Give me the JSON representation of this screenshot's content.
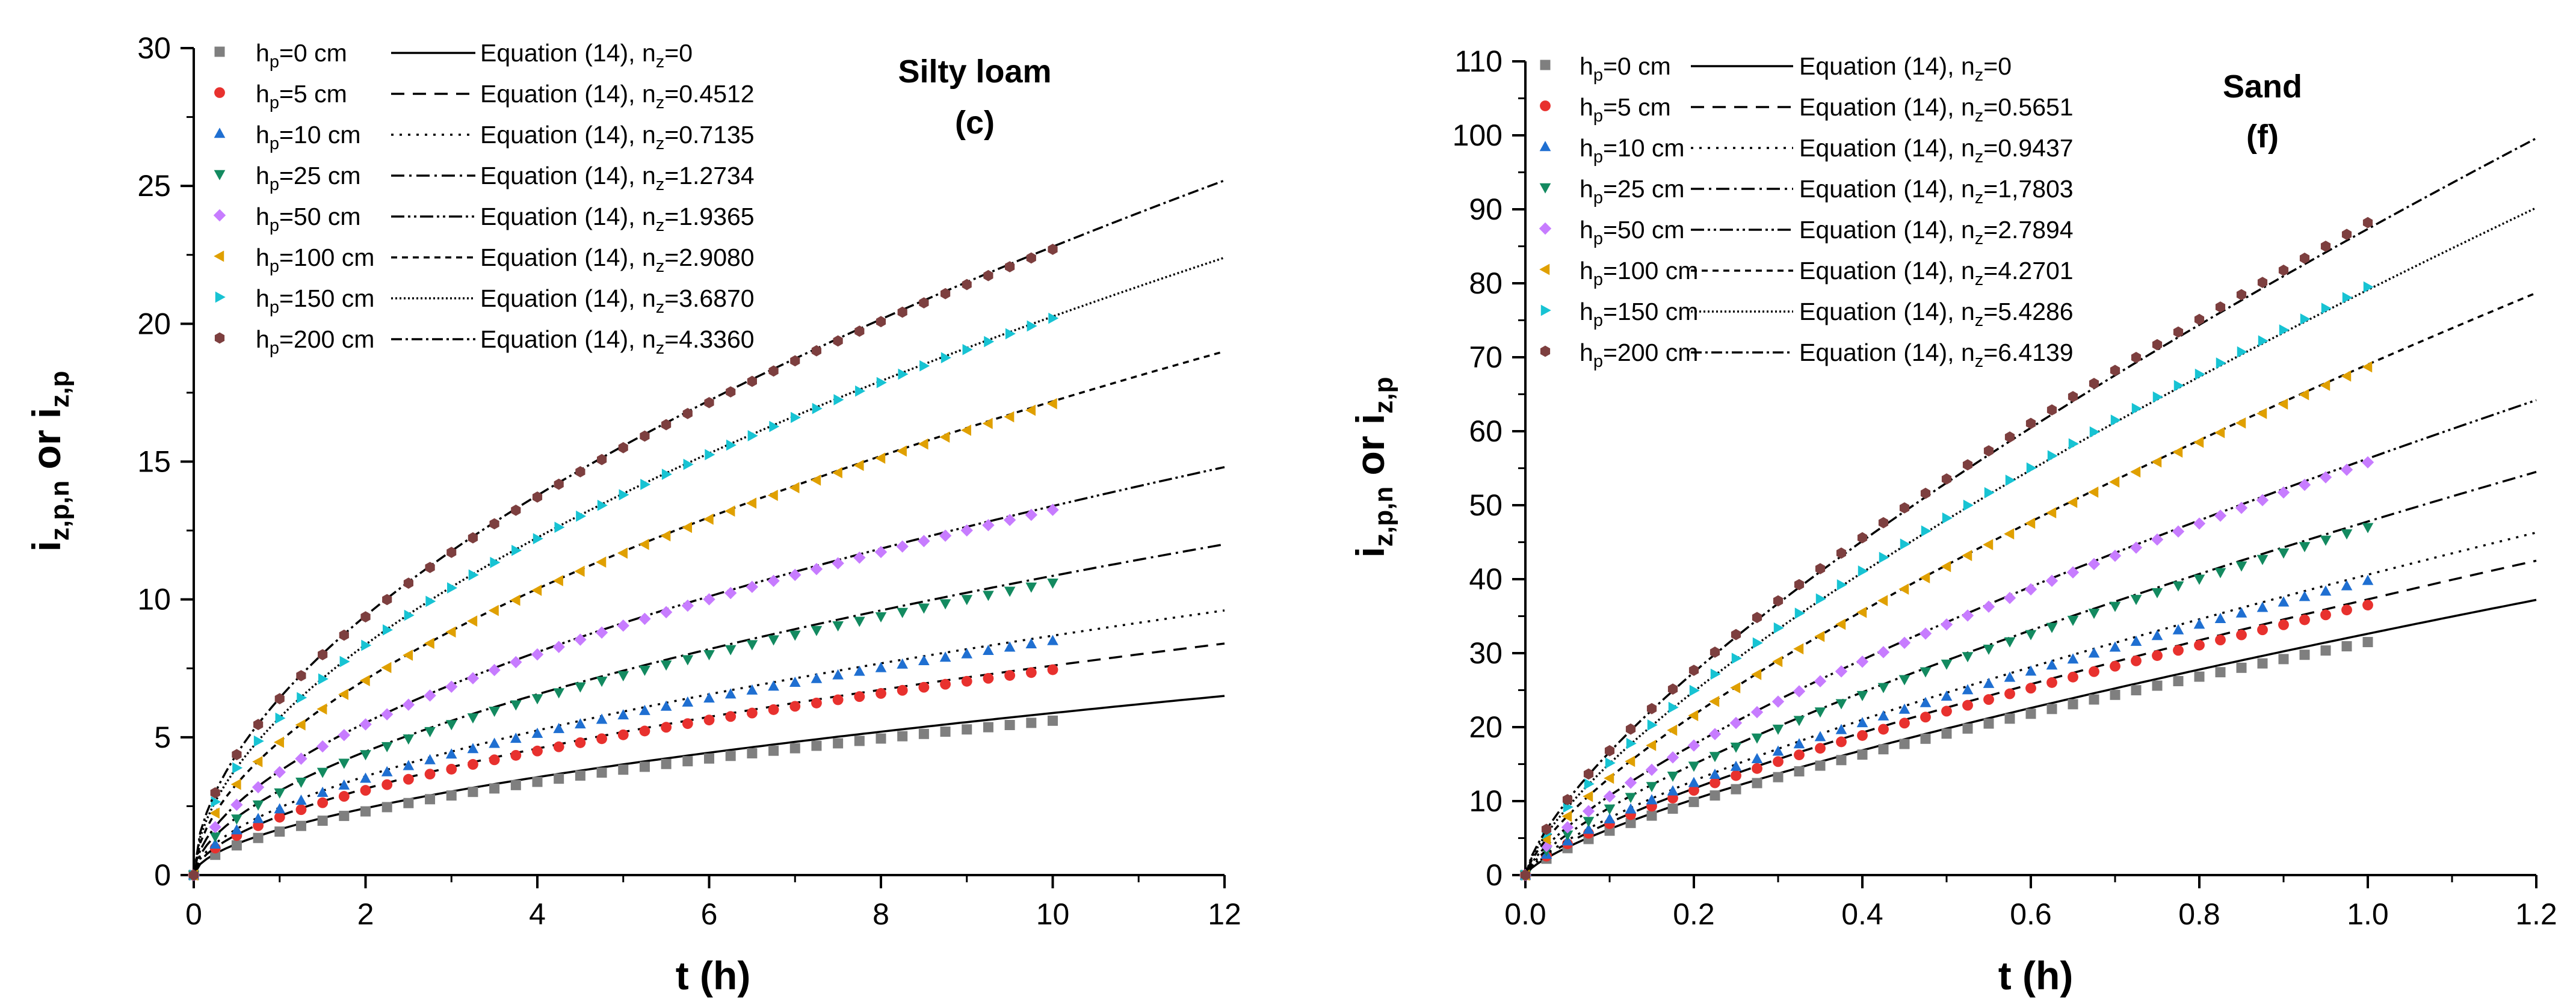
{
  "chart_data": [
    {
      "type": "scatter",
      "title": "Silty loam",
      "panel_label": "(c)",
      "xlabel": "t (h)",
      "ylabel": {
        "main1": "i",
        "sub1": "z,p,n",
        "mid": "  or  ",
        "main2": "i",
        "sub2": "z,p"
      },
      "xlim": [
        0,
        12
      ],
      "ylim": [
        0,
        30
      ],
      "xticks": [
        0,
        2,
        4,
        6,
        8,
        10,
        12
      ],
      "yticks": [
        0,
        5,
        10,
        15,
        20,
        25,
        30
      ],
      "xtick_labels": [
        "0",
        "2",
        "4",
        "6",
        "8",
        "10",
        "12"
      ],
      "ytick_labels": [
        "0",
        "5",
        "10",
        "15",
        "20",
        "25",
        "30"
      ],
      "x_obs_max": 10,
      "n_points": 41,
      "legend_position": "top-left",
      "series": [
        {
          "name_main": "h",
          "name_sub": "p",
          "name_rest": "=0 cm",
          "eq_main": "Equation (14), n",
          "eq_sub": "z",
          "eq_rest": "=0",
          "n_z": 0,
          "marker": "square",
          "color": "#7f7f7f",
          "dash": "",
          "end_value": 6.5,
          "obs_end": 5.6
        },
        {
          "name_main": "h",
          "name_sub": "p",
          "name_rest": "=5 cm",
          "eq_main": "Equation (14), n",
          "eq_sub": "z",
          "eq_rest": "=0.4512",
          "n_z": 0.4512,
          "marker": "circle",
          "color": "#e8312e",
          "dash": "22,14",
          "end_value": 8.4,
          "obs_end": 7.45
        },
        {
          "name_main": "h",
          "name_sub": "p",
          "name_rest": "=10 cm",
          "eq_main": "Equation (14), n",
          "eq_sub": "z",
          "eq_rest": "=0.7135",
          "n_z": 0.7135,
          "marker": "triangle-up",
          "color": "#1f6fd1",
          "dash": "4,10",
          "end_value": 9.6,
          "obs_end": 8.5
        },
        {
          "name_main": "h",
          "name_sub": "p",
          "name_rest": "=25 cm",
          "eq_main": "Equation (14), n",
          "eq_sub": "z",
          "eq_rest": "=1.2734",
          "n_z": 1.2734,
          "marker": "triangle-down",
          "color": "#138a60",
          "dash": "22,8,4,8",
          "end_value": 12.0,
          "obs_end": 10.6
        },
        {
          "name_main": "h",
          "name_sub": "p",
          "name_rest": "=50 cm",
          "eq_main": "Equation (14), n",
          "eq_sub": "z",
          "eq_rest": "=1.9365",
          "n_z": 1.9365,
          "marker": "diamond",
          "color": "#c77cff",
          "dash": "22,6,4,6,4,6",
          "end_value": 14.8,
          "obs_end": 13.25
        },
        {
          "name_main": "h",
          "name_sub": "p",
          "name_rest": "=100 cm",
          "eq_main": "Equation (14), n",
          "eq_sub": "z",
          "eq_rest": "=2.9080",
          "n_z": 2.908,
          "marker": "triangle-left",
          "color": "#e0a000",
          "dash": "10,8",
          "end_value": 19.0,
          "obs_end": 17.1
        },
        {
          "name_main": "h",
          "name_sub": "p",
          "name_rest": "=150 cm",
          "eq_main": "Equation (14), n",
          "eq_sub": "z",
          "eq_rest": "=3.6870",
          "n_z": 3.687,
          "marker": "triangle-right",
          "color": "#17c3d3",
          "dash": "3,4",
          "end_value": 22.4,
          "obs_end": 20.2
        },
        {
          "name_main": "h",
          "name_sub": "p",
          "name_rest": "=200 cm",
          "eq_main": "Equation (14), n",
          "eq_sub": "z",
          "eq_rest": "=4.3360",
          "n_z": 4.336,
          "marker": "hexagon",
          "color": "#7d3f3f",
          "dash": "18,6,4,6",
          "end_value": 25.2,
          "obs_end": 22.7
        }
      ]
    },
    {
      "type": "scatter",
      "title": "Sand",
      "panel_label": "(f)",
      "xlabel": "t (h)",
      "ylabel": {
        "main1": "i",
        "sub1": "z,p,n",
        "mid": "  or  ",
        "main2": "i",
        "sub2": "z,p"
      },
      "xlim": [
        0,
        1.2
      ],
      "ylim": [
        0,
        110
      ],
      "xticks": [
        0,
        0.2,
        0.4,
        0.6,
        0.8,
        1.0,
        1.2
      ],
      "yticks": [
        0,
        10,
        20,
        30,
        40,
        50,
        60,
        70,
        80,
        90,
        100,
        110
      ],
      "xtick_labels": [
        "0.0",
        "0.2",
        "0.4",
        "0.6",
        "0.8",
        "1.0",
        "1.2"
      ],
      "ytick_labels": [
        "0",
        "10",
        "20",
        "30",
        "40",
        "50",
        "60",
        "70",
        "80",
        "90",
        "100",
        "110"
      ],
      "x_obs_max": 1.0,
      "n_points": 41,
      "legend_position": "top-left",
      "series": [
        {
          "name_main": "h",
          "name_sub": "p",
          "name_rest": "=0 cm",
          "eq_main": "Equation (14), n",
          "eq_sub": "z",
          "eq_rest": "=0",
          "n_z": 0,
          "marker": "square",
          "color": "#7f7f7f",
          "dash": "",
          "end_value": 37.2,
          "obs_end": 31.5
        },
        {
          "name_main": "h",
          "name_sub": "p",
          "name_rest": "=5 cm",
          "eq_main": "Equation (14), n",
          "eq_sub": "z",
          "eq_rest": "=0.5651",
          "n_z": 0.5651,
          "marker": "circle",
          "color": "#e8312e",
          "dash": "22,14",
          "end_value": 42.5,
          "obs_end": 36.5
        },
        {
          "name_main": "h",
          "name_sub": "p",
          "name_rest": "=10 cm",
          "eq_main": "Equation (14), n",
          "eq_sub": "z",
          "eq_rest": "=0.9437",
          "n_z": 0.9437,
          "marker": "triangle-up",
          "color": "#1f6fd1",
          "dash": "4,10",
          "end_value": 46.3,
          "obs_end": 39.8
        },
        {
          "name_main": "h",
          "name_sub": "p",
          "name_rest": "=25 cm",
          "eq_main": "Equation (14), n",
          "eq_sub": "z",
          "eq_rest": "=1,7803",
          "n_z": 1.7803,
          "marker": "triangle-down",
          "color": "#138a60",
          "dash": "22,8,4,8",
          "end_value": 54.5,
          "obs_end": 47.0
        },
        {
          "name_main": "h",
          "name_sub": "p",
          "name_rest": "=50 cm",
          "eq_main": "Equation (14), n",
          "eq_sub": "z",
          "eq_rest": "=2.7894",
          "n_z": 2.7894,
          "marker": "diamond",
          "color": "#c77cff",
          "dash": "22,6,4,6,4,6",
          "end_value": 64.2,
          "obs_end": 55.8
        },
        {
          "name_main": "h",
          "name_sub": "p",
          "name_rest": "=100 cm",
          "eq_main": "Equation (14), n",
          "eq_sub": "z",
          "eq_rest": "=4.2701",
          "n_z": 4.2701,
          "marker": "triangle-left",
          "color": "#e0a000",
          "dash": "10,8",
          "end_value": 78.7,
          "obs_end": 68.7
        },
        {
          "name_main": "h",
          "name_sub": "p",
          "name_rest": "=150 cm",
          "eq_main": "Equation (14), n",
          "eq_sub": "z",
          "eq_rest": "=5.4286",
          "n_z": 5.4286,
          "marker": "triangle-right",
          "color": "#17c3d3",
          "dash": "3,4",
          "end_value": 90.2,
          "obs_end": 79.5
        },
        {
          "name_main": "h",
          "name_sub": "p",
          "name_rest": "=200 cm",
          "eq_main": "Equation (14), n",
          "eq_sub": "z",
          "eq_rest": "=6.4139",
          "n_z": 6.4139,
          "marker": "hexagon",
          "color": "#7d3f3f",
          "dash": "18,6,4,6",
          "end_value": 99.6,
          "obs_end": 88.2
        }
      ]
    }
  ]
}
